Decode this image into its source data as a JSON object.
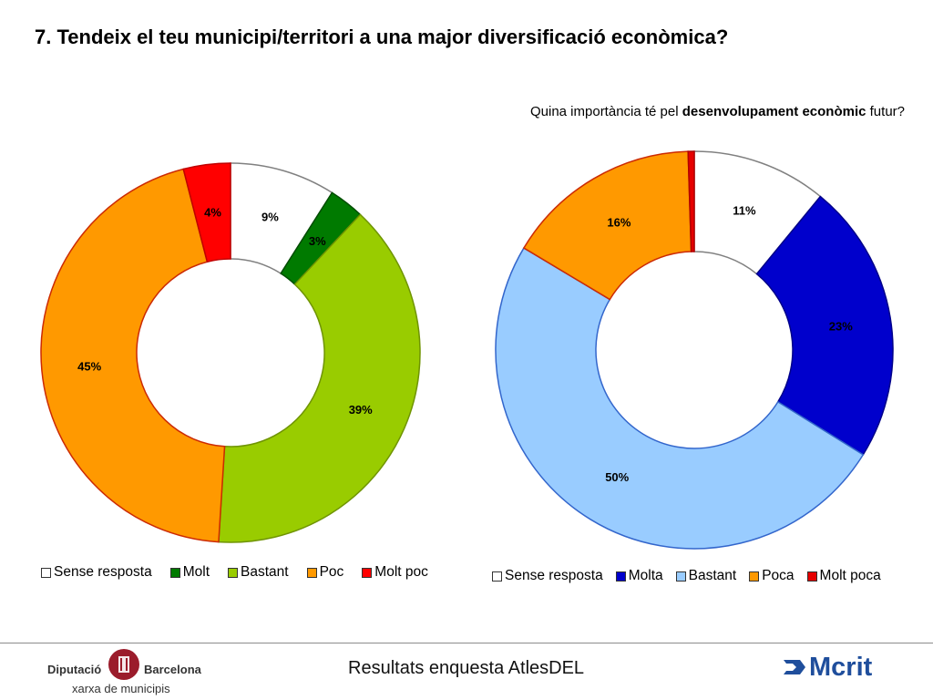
{
  "slide": {
    "title": "7. Tendeix el teu municipi/territori a una major diversificació econòmica?",
    "subtitle_pre": "Quina importància té pel ",
    "subtitle_bold": "desenvolupament econòmic",
    "subtitle_post": " futur?",
    "footer_text": "Resultats enquesta AtlesDEL"
  },
  "logos": {
    "diputacio_word1": "Diputació",
    "diputacio_word2": "Barcelona",
    "diputacio_sub": "xarxa de municipis",
    "mcrit": "Mcrit"
  },
  "chart_data": [
    {
      "type": "pie",
      "donut": true,
      "title": "",
      "categories": [
        "Sense resposta",
        "Molt",
        "Bastant",
        "Poc",
        "Molt poc"
      ],
      "values": [
        9,
        3,
        39,
        45,
        4
      ],
      "labels": [
        "9%",
        "3%",
        "39%",
        "45%",
        "4%"
      ],
      "colors": [
        "#ffffff",
        "#007a00",
        "#99cc00",
        "#ff9900",
        "#ff0000"
      ],
      "edge_colors": [
        "#808080",
        "#004d00",
        "#6f9400",
        "#cc2a00",
        "#c00000"
      ],
      "legend": "bottom"
    },
    {
      "type": "pie",
      "donut": true,
      "title": "",
      "categories": [
        "Sense resposta",
        "Molta",
        "Bastant",
        "Poca",
        "Molt poca"
      ],
      "values": [
        11,
        23,
        50,
        16,
        0.5
      ],
      "labels": [
        "11%",
        "23%",
        "50%",
        "16%",
        ""
      ],
      "colors": [
        "#ffffff",
        "#0000cc",
        "#99ccff",
        "#ff9900",
        "#e60000"
      ],
      "edge_colors": [
        "#808080",
        "#00008a",
        "#3366cc",
        "#cc2a00",
        "#b00000"
      ],
      "legend": "bottom"
    }
  ]
}
